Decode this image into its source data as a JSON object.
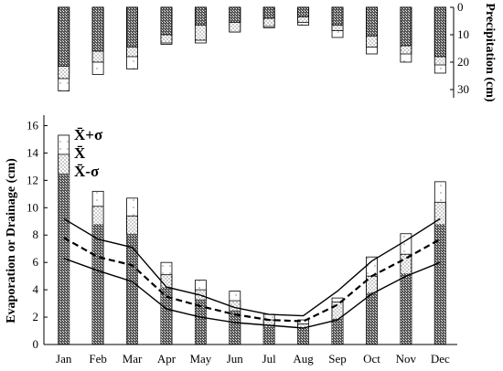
{
  "chart_data": [
    {
      "type": "bar",
      "title": "",
      "categories": [
        "Jan",
        "Feb",
        "Mar",
        "Apr",
        "May",
        "Jun",
        "Jul",
        "Aug",
        "Sep",
        "Oct",
        "Nov",
        "Dec"
      ],
      "ylabel": "Precipitation (cm)",
      "yaxis_position": "right",
      "yaxis_inverted": true,
      "ylim": [
        0,
        33
      ],
      "yticks": [
        "0",
        "10",
        "20",
        "30"
      ],
      "grid": false,
      "series": [
        {
          "values": [
            21.5,
            16.0,
            14.5,
            10.0,
            6.5,
            5.5,
            4.0,
            3.5,
            6.5,
            10.5,
            14.0,
            18.0
          ]
        },
        {
          "values": [
            26.0,
            20.0,
            18.0,
            13.0,
            12.0,
            9.0,
            7.0,
            5.5,
            8.5,
            14.5,
            17.0,
            21.0
          ]
        },
        {
          "values": [
            30.5,
            24.5,
            22.5,
            13.5,
            13.0,
            9.0,
            7.5,
            6.5,
            11.0,
            17.0,
            20.0,
            24.0
          ]
        }
      ]
    },
    {
      "type": "bar",
      "title": "",
      "categories": [
        "Jan",
        "Feb",
        "Mar",
        "Apr",
        "May",
        "Jun",
        "Jul",
        "Aug",
        "Sep",
        "Oct",
        "Nov",
        "Dec"
      ],
      "ylabel": "Evaporation or Drainage (cm)",
      "ylim": [
        0,
        16.5
      ],
      "yticks": [
        "0",
        "2",
        "4",
        "6",
        "8",
        "10",
        "12",
        "14",
        "16"
      ],
      "grid": false,
      "legend": {
        "position": "top-left",
        "entries": [
          "X̄+σ",
          "X̄",
          "X̄-σ"
        ]
      },
      "bar_series": [
        {
          "values": [
            12.5,
            8.8,
            8.1,
            4.2,
            3.3,
            2.5,
            1.3,
            1.2,
            1.9,
            3.8,
            5.2,
            8.8
          ]
        },
        {
          "values": [
            13.9,
            10.1,
            9.4,
            5.1,
            4.0,
            3.2,
            1.8,
            1.5,
            3.1,
            5.0,
            6.6,
            10.4
          ]
        },
        {
          "values": [
            15.3,
            11.2,
            10.7,
            6.0,
            4.7,
            3.9,
            2.2,
            1.8,
            3.4,
            6.4,
            8.1,
            11.9
          ]
        }
      ],
      "line_series": [
        {
          "style": "solid",
          "values": [
            9.2,
            7.7,
            7.1,
            4.2,
            3.6,
            2.7,
            2.2,
            2.1,
            3.9,
            6.1,
            7.6,
            9.2
          ]
        },
        {
          "style": "dashed",
          "values": [
            7.8,
            6.4,
            5.8,
            3.5,
            2.8,
            2.2,
            1.8,
            1.7,
            2.9,
            5.0,
            6.3,
            7.7
          ]
        },
        {
          "style": "solid",
          "values": [
            6.3,
            5.4,
            4.6,
            2.6,
            2.0,
            1.6,
            1.4,
            1.2,
            1.8,
            3.7,
            5.0,
            6.0
          ]
        }
      ]
    }
  ]
}
